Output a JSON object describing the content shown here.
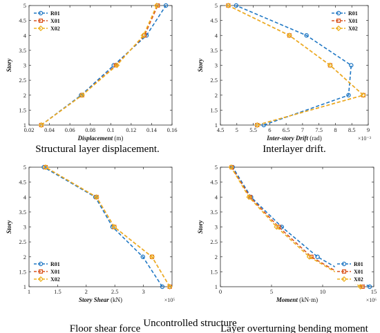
{
  "figure": {
    "caption": "Uncontrolled structure"
  },
  "colors": {
    "R01": "#1f77c4",
    "X01": "#d9531e",
    "X02": "#edb120"
  },
  "chart_data": [
    {
      "type": "line",
      "caption": "Structural layer displacement.",
      "xlabel": "Displacement",
      "xunit": " (m)",
      "ylabel": "Story",
      "xlim": [
        0.02,
        0.16
      ],
      "ylim": [
        1,
        5
      ],
      "xticks": [
        0.02,
        0.04,
        0.06,
        0.08,
        0.1,
        0.12,
        0.14,
        0.16
      ],
      "xtick_labels": [
        "0.02",
        "0.04",
        "0.06",
        "0.08",
        "0.1",
        "0.12",
        "0.14",
        "0.16"
      ],
      "yticks": [
        1,
        1.5,
        2,
        2.5,
        3,
        3.5,
        4,
        4.5,
        5
      ],
      "ytick_labels": [
        "1",
        "1.5",
        "2",
        "2.5",
        "3",
        "3.5",
        "4",
        "4.5",
        "5"
      ],
      "exponent": "",
      "legend_position": "top-left",
      "grid": false,
      "series": [
        {
          "name": "R01",
          "x": [
            0.032,
            0.071,
            0.103,
            0.135,
            0.154
          ],
          "y": [
            1,
            2,
            3,
            4,
            5
          ]
        },
        {
          "name": "X01",
          "x": [
            0.032,
            0.072,
            0.105,
            0.133,
            0.146
          ],
          "y": [
            1,
            2,
            3,
            4,
            5
          ]
        },
        {
          "name": "X02",
          "x": [
            0.032,
            0.072,
            0.106,
            0.132,
            0.145
          ],
          "y": [
            1,
            2,
            3,
            4,
            5
          ]
        }
      ]
    },
    {
      "type": "line",
      "caption": "Interlayer drift.",
      "xlabel": "Inter-story Drift",
      "xunit": " (rad)",
      "ylabel": "Story",
      "xlim": [
        0.0045,
        0.009
      ],
      "ylim": [
        1,
        5
      ],
      "xticks": [
        0.0045,
        0.005,
        0.0055,
        0.006,
        0.0065,
        0.007,
        0.0075,
        0.008,
        0.0085,
        0.009
      ],
      "xtick_labels": [
        "4.5",
        "5",
        "5.5",
        "6",
        "6.5",
        "7",
        "7.5",
        "8",
        "8.5",
        "9"
      ],
      "yticks": [
        1,
        1.5,
        2,
        2.5,
        3,
        3.5,
        4,
        4.5,
        5
      ],
      "ytick_labels": [
        "1",
        "1.5",
        "2",
        "2.5",
        "3",
        "3.5",
        "4",
        "4.5",
        "5"
      ],
      "exponent": "×10⁻³",
      "legend_position": "top-right",
      "grid": false,
      "series": [
        {
          "name": "R01",
          "x": [
            0.00582,
            0.0084,
            0.00848,
            0.00712,
            0.00498
          ],
          "y": [
            1,
            2,
            3,
            4,
            5
          ]
        },
        {
          "name": "X01",
          "x": [
            0.00562,
            0.00885,
            0.00784,
            0.0066,
            0.00474
          ],
          "y": [
            1,
            2,
            3,
            4,
            5
          ]
        },
        {
          "name": "X02",
          "x": [
            0.00562,
            0.00885,
            0.00784,
            0.0066,
            0.00474
          ],
          "y": [
            1,
            2,
            3,
            4,
            5
          ]
        }
      ]
    },
    {
      "type": "line",
      "caption": "Floor shear force",
      "xlabel": "Story Shear",
      "xunit": " (kN)",
      "ylabel": "Story",
      "xlim": [
        100000,
        350000
      ],
      "ylim": [
        1,
        5
      ],
      "xticks": [
        100000,
        150000,
        200000,
        250000,
        300000
      ],
      "xtick_labels": [
        "1",
        "1.5",
        "2",
        "2.5",
        "3"
      ],
      "yticks": [
        1,
        1.5,
        2,
        2.5,
        3,
        3.5,
        4,
        4.5,
        5
      ],
      "ytick_labels": [
        "1",
        "1.5",
        "2",
        "2.5",
        "3",
        "3.5",
        "4",
        "4.5",
        "5"
      ],
      "exponent": "×10⁵",
      "legend_position": "bottom-left",
      "grid": false,
      "series": [
        {
          "name": "R01",
          "x": [
            333000,
            299000,
            246000,
            216000,
            126000
          ],
          "y": [
            1,
            2,
            3,
            4,
            5
          ]
        },
        {
          "name": "X01",
          "x": [
            346000,
            315000,
            249000,
            218000,
            129000
          ],
          "y": [
            1,
            2,
            3,
            4,
            5
          ]
        },
        {
          "name": "X02",
          "x": [
            346000,
            315000,
            249000,
            218000,
            129000
          ],
          "y": [
            1,
            2,
            3,
            4,
            5
          ]
        }
      ]
    },
    {
      "type": "line",
      "caption": "Layer overturning bending moment",
      "xlabel": "Moment",
      "xunit": " (kN·m)",
      "ylabel": "Story",
      "xlim": [
        0,
        15000000
      ],
      "ylim": [
        1,
        5
      ],
      "xticks": [
        0,
        5000000,
        10000000,
        15000000
      ],
      "xtick_labels": [
        "0",
        "5",
        "10",
        "15"
      ],
      "yticks": [
        1,
        1.5,
        2,
        2.5,
        3,
        3.5,
        4,
        4.5,
        5
      ],
      "ytick_labels": [
        "1",
        "1.5",
        "2",
        "2.5",
        "3",
        "3.5",
        "4",
        "4.5",
        "5"
      ],
      "exponent": "×10⁶",
      "legend_position": "bottom-right",
      "grid": false,
      "series": [
        {
          "name": "R01",
          "x": [
            14600000,
            9500000,
            6000000,
            3000000,
            1200000
          ],
          "y": [
            1,
            2,
            3,
            4,
            5
          ]
        },
        {
          "name": "X01",
          "x": [
            13900000,
            8900000,
            5700000,
            2900000,
            1100000
          ],
          "y": [
            1,
            2,
            3,
            4,
            5
          ]
        },
        {
          "name": "X02",
          "x": [
            13700000,
            8700000,
            5500000,
            2800000,
            1050000
          ],
          "y": [
            1,
            2,
            3,
            4,
            5
          ]
        }
      ]
    }
  ]
}
